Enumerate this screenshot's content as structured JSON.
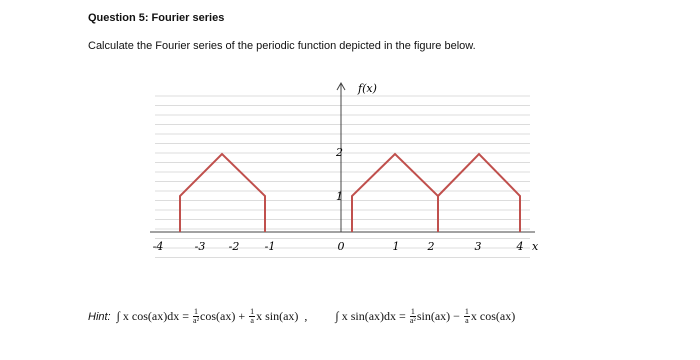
{
  "question": {
    "title": "Question 5: Fourier series",
    "prompt": "Calculate the Fourier series of the periodic function depicted in the figure below."
  },
  "figure": {
    "y_axis_label": "f(x)",
    "x_axis_label": "x",
    "x_ticks": [
      "-4",
      "-3",
      "-2",
      "-1",
      "0",
      "1",
      "2",
      "3",
      "4"
    ],
    "y_ticks": [
      "1",
      "2"
    ]
  },
  "hint": {
    "label": "Hint:",
    "formulas": [
      [
        "∫ x cos(ax)dx = ",
        {
          "num": "1",
          "den": "a²"
        },
        "cos(ax) + ",
        {
          "num": "1",
          "den": "a"
        },
        "x sin(ax)  ,"
      ],
      [
        "∫ x sin(ax)dx = ",
        {
          "num": "1",
          "den": "a²"
        },
        "sin(ax) − ",
        {
          "num": "1",
          "den": "a"
        },
        "x cos(ax)"
      ]
    ]
  }
}
